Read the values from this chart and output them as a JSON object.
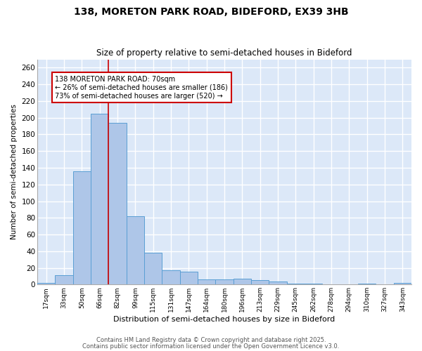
{
  "title1": "138, MORETON PARK ROAD, BIDEFORD, EX39 3HB",
  "title2": "Size of property relative to semi-detached houses in Bideford",
  "xlabel": "Distribution of semi-detached houses by size in Bideford",
  "ylabel": "Number of semi-detached properties",
  "categories": [
    "17sqm",
    "33sqm",
    "50sqm",
    "66sqm",
    "82sqm",
    "99sqm",
    "115sqm",
    "131sqm",
    "147sqm",
    "164sqm",
    "180sqm",
    "196sqm",
    "213sqm",
    "229sqm",
    "245sqm",
    "262sqm",
    "278sqm",
    "294sqm",
    "310sqm",
    "327sqm",
    "343sqm"
  ],
  "values": [
    2,
    11,
    136,
    205,
    194,
    82,
    38,
    17,
    15,
    6,
    6,
    7,
    5,
    4,
    1,
    1,
    0,
    0,
    1,
    0,
    2
  ],
  "bar_color": "#aec6e8",
  "bar_edge_color": "#5a9fd4",
  "vline_x_index": 3,
  "annotation_title": "138 MORETON PARK ROAD: 70sqm",
  "annotation_line1": "← 26% of semi-detached houses are smaller (186)",
  "annotation_line2": "73% of semi-detached houses are larger (520) →",
  "annotation_box_color": "#ffffff",
  "annotation_box_edge": "#cc0000",
  "vline_color": "#cc0000",
  "yticks": [
    0,
    20,
    40,
    60,
    80,
    100,
    120,
    140,
    160,
    180,
    200,
    220,
    240,
    260
  ],
  "ylim": [
    0,
    270
  ],
  "footnote1": "Contains HM Land Registry data © Crown copyright and database right 2025.",
  "footnote2": "Contains public sector information licensed under the Open Government Licence v3.0.",
  "background_color": "#dce8f8",
  "grid_color": "#ffffff"
}
